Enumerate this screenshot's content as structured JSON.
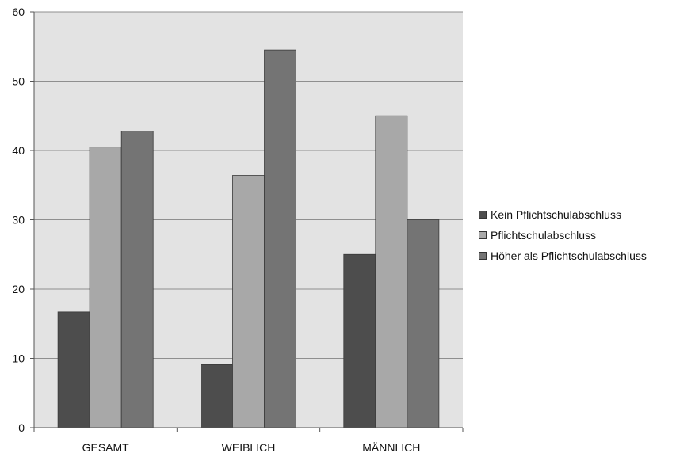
{
  "chart_data": {
    "type": "bar",
    "title": "",
    "xlabel": "",
    "ylabel": "",
    "categories": [
      "GESAMT",
      "WEIBLICH",
      "MÄNNLICH"
    ],
    "ylim": [
      0,
      60
    ],
    "yticks": [
      0,
      10,
      20,
      30,
      40,
      50,
      60
    ],
    "grid": true,
    "legend_position": "right",
    "series": [
      {
        "name": "Kein Pflichtschulabschluss",
        "values": [
          16.7,
          9.1,
          25.0
        ],
        "color": "#4d4d4d"
      },
      {
        "name": "Pflichtschulabschluss",
        "values": [
          40.5,
          36.4,
          45.0
        ],
        "color": "#a8a8a8"
      },
      {
        "name": "Höher als Pflichtschulabschluss",
        "values": [
          42.8,
          54.5,
          30.0
        ],
        "color": "#747474"
      }
    ],
    "plot_background": "#e3e3e3"
  }
}
